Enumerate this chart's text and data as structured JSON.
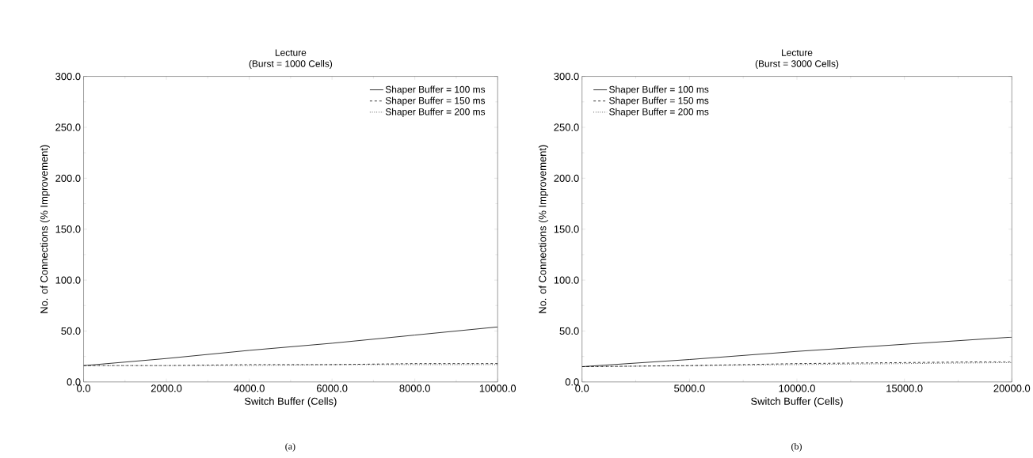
{
  "chart_data": [
    {
      "type": "line",
      "title": "Lecture",
      "subtitle": "(Burst = 1000 Cells)",
      "xlabel": "Switch Buffer (Cells)",
      "ylabel": "No. of Connections (% Improvement)",
      "annotations": [
        "(a)"
      ],
      "x": [
        0,
        2000,
        4000,
        6000,
        8000,
        10000
      ],
      "series": [
        {
          "name": "Shaper Buffer = 100 ms",
          "color": "#000000",
          "line_style": "solid",
          "values": [
            16,
            23,
            31,
            38,
            46,
            54
          ]
        },
        {
          "name": "Shaper Buffer = 150 ms",
          "color": "#000000",
          "line_style": "dashed",
          "values": [
            16,
            16,
            17,
            17,
            18,
            18
          ]
        },
        {
          "name": "Shaper Buffer = 200 ms",
          "color": "#000000",
          "line_style": "dotted",
          "values": [
            16,
            16,
            16,
            17,
            17,
            17
          ]
        }
      ],
      "xlim": [
        0,
        10000
      ],
      "ylim": [
        0,
        300
      ],
      "xticks": [
        {
          "value": 0,
          "label": "0.0"
        },
        {
          "value": 2000,
          "label": "2000.0"
        },
        {
          "value": 4000,
          "label": "4000.0"
        },
        {
          "value": 6000,
          "label": "6000.0"
        },
        {
          "value": 8000,
          "label": "8000.0"
        },
        {
          "value": 10000,
          "label": "10000.0"
        }
      ],
      "yticks": [
        {
          "value": 0,
          "label": "0.0"
        },
        {
          "value": 50,
          "label": "50.0"
        },
        {
          "value": 100,
          "label": "100.0"
        },
        {
          "value": 150,
          "label": "150.0"
        },
        {
          "value": 200,
          "label": "200.0"
        },
        {
          "value": 250,
          "label": "250.0"
        },
        {
          "value": 300,
          "label": "300.0"
        }
      ],
      "legend": "top right",
      "grid": false,
      "marker": "none"
    },
    {
      "type": "line",
      "title": "Lecture",
      "subtitle": "(Burst = 3000 Cells)",
      "xlabel": "Switch Buffer (Cells)",
      "ylabel": "No. of Connections (% Improvement)",
      "annotations": [
        "(b)"
      ],
      "x": [
        0,
        5000,
        10000,
        15000,
        20000
      ],
      "series": [
        {
          "name": "Shaper Buffer = 100 ms",
          "color": "#000000",
          "line_style": "solid",
          "values": [
            15,
            22,
            30,
            37,
            44
          ]
        },
        {
          "name": "Shaper Buffer = 150 ms",
          "color": "#000000",
          "line_style": "dashed",
          "values": [
            15,
            16,
            18,
            19,
            20
          ]
        },
        {
          "name": "Shaper Buffer = 200 ms",
          "color": "#000000",
          "line_style": "dotted",
          "values": [
            15,
            16,
            17,
            18,
            19
          ]
        }
      ],
      "xlim": [
        0,
        20000
      ],
      "ylim": [
        0,
        300
      ],
      "xticks": [
        {
          "value": 0,
          "label": "0.0"
        },
        {
          "value": 5000,
          "label": "5000.0"
        },
        {
          "value": 10000,
          "label": "10000.0"
        },
        {
          "value": 15000,
          "label": "15000.0"
        },
        {
          "value": 20000,
          "label": "20000.0"
        }
      ],
      "yticks": [
        {
          "value": 0,
          "label": "0.0"
        },
        {
          "value": 50,
          "label": "50.0"
        },
        {
          "value": 100,
          "label": "100.0"
        },
        {
          "value": 150,
          "label": "150.0"
        },
        {
          "value": 200,
          "label": "200.0"
        },
        {
          "value": 250,
          "label": "250.0"
        },
        {
          "value": 300,
          "label": "300.0"
        }
      ],
      "legend": "top left",
      "grid": false,
      "marker": "none"
    }
  ]
}
